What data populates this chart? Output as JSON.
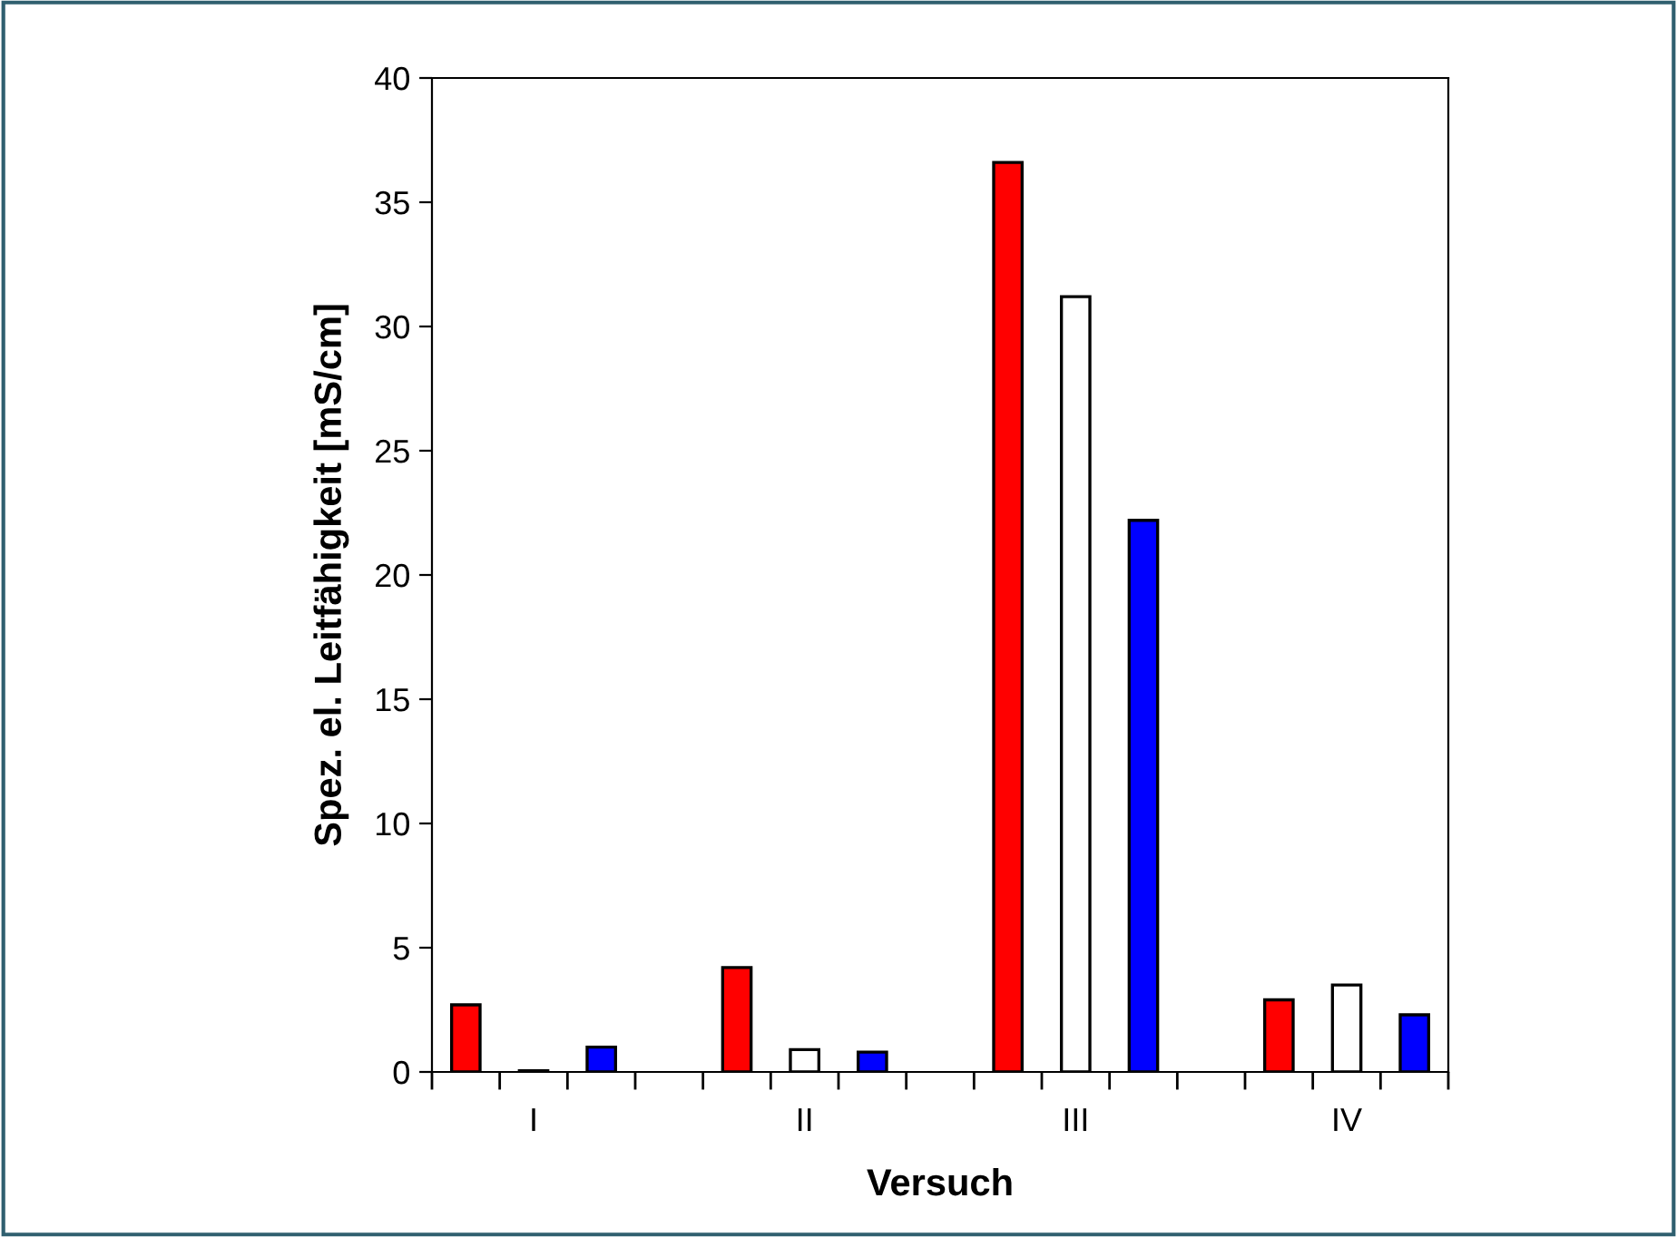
{
  "chart_data": {
    "type": "bar",
    "xlabel": "Versuch",
    "ylabel": "Spez. el. Leitfähigkeit [mS/cm]",
    "categories": [
      "I",
      "II",
      "III",
      "IV"
    ],
    "series": [
      {
        "color": "#ff0000",
        "values": [
          2.7,
          4.2,
          36.6,
          2.9
        ]
      },
      {
        "color": "#ffffff",
        "values": [
          0.05,
          0.9,
          31.2,
          3.5
        ]
      },
      {
        "color": "#0000ff",
        "values": [
          1.0,
          0.8,
          22.2,
          2.3
        ]
      }
    ],
    "ylim": [
      0,
      40
    ],
    "yticks": [
      0,
      5,
      10,
      15,
      20,
      25,
      30,
      35,
      40
    ],
    "grid": false,
    "legend": false
  }
}
